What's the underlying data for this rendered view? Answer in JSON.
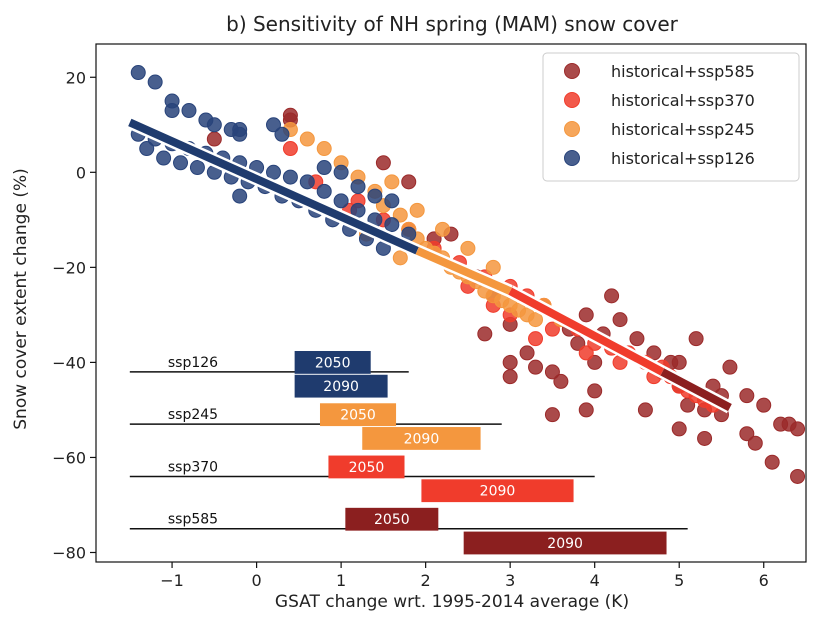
{
  "chart_data": {
    "type": "scatter",
    "title": "b) Sensitivity of NH spring (MAM) snow cover",
    "xlabel": "GSAT change wrt. 1995-2014 average (K)",
    "ylabel": "Snow cover extent change (%)",
    "xlim": [
      -1.9,
      6.5
    ],
    "ylim": [
      -82,
      27
    ],
    "xticks": [
      -1,
      0,
      1,
      2,
      3,
      4,
      5,
      6
    ],
    "yticks": [
      20,
      0,
      -20,
      -40,
      -60,
      -80
    ],
    "legend_position": "top-right",
    "series": [
      {
        "name": "historical+ssp585",
        "color": "#9b2a2a",
        "points": [
          [
            -0.5,
            7
          ],
          [
            0.4,
            11
          ],
          [
            0.4,
            12
          ],
          [
            1.5,
            2
          ],
          [
            1.8,
            -2
          ],
          [
            2.1,
            -14
          ],
          [
            2.3,
            -13
          ],
          [
            2.6,
            -22
          ],
          [
            2.8,
            -26
          ],
          [
            3.0,
            -32
          ],
          [
            3.0,
            -40
          ],
          [
            3.0,
            -43
          ],
          [
            3.2,
            -38
          ],
          [
            3.3,
            -41
          ],
          [
            3.5,
            -42
          ],
          [
            3.6,
            -44
          ],
          [
            3.8,
            -36
          ],
          [
            3.9,
            -30
          ],
          [
            4.0,
            -40
          ],
          [
            4.0,
            -46
          ],
          [
            4.2,
            -26
          ],
          [
            4.3,
            -31
          ],
          [
            4.5,
            -35
          ],
          [
            4.7,
            -38
          ],
          [
            4.9,
            -40
          ],
          [
            5.0,
            -45
          ],
          [
            5.2,
            -35
          ],
          [
            5.4,
            -45
          ],
          [
            5.6,
            -41
          ],
          [
            5.8,
            -47
          ],
          [
            5.9,
            -57
          ],
          [
            6.0,
            -49
          ],
          [
            6.1,
            -61
          ],
          [
            6.2,
            -53
          ],
          [
            6.3,
            -53
          ],
          [
            6.4,
            -64
          ],
          [
            6.4,
            -54
          ],
          [
            3.5,
            -51
          ],
          [
            3.9,
            -50
          ],
          [
            4.6,
            -50
          ],
          [
            5.0,
            -54
          ],
          [
            5.3,
            -56
          ],
          [
            5.5,
            -51
          ],
          [
            2.7,
            -34
          ],
          [
            3.7,
            -33
          ],
          [
            4.1,
            -34
          ],
          [
            4.8,
            -42
          ],
          [
            5.1,
            -49
          ],
          [
            5.3,
            -50
          ],
          [
            5.0,
            -40
          ],
          [
            5.5,
            -47
          ],
          [
            5.8,
            -55
          ]
        ]
      },
      {
        "name": "historical+ssp370",
        "color": "#f03c2c",
        "points": [
          [
            0.4,
            5
          ],
          [
            0.7,
            -2
          ],
          [
            1.2,
            -6
          ],
          [
            1.5,
            -10
          ],
          [
            1.8,
            -12
          ],
          [
            2.1,
            -16
          ],
          [
            2.4,
            -19
          ],
          [
            2.7,
            -22
          ],
          [
            3.0,
            -24
          ],
          [
            3.2,
            -26
          ],
          [
            3.4,
            -28
          ],
          [
            3.6,
            -31
          ],
          [
            3.8,
            -33
          ],
          [
            4.0,
            -36
          ],
          [
            4.2,
            -37
          ],
          [
            4.4,
            -38
          ],
          [
            4.6,
            -40
          ],
          [
            4.8,
            -41
          ],
          [
            4.9,
            -43
          ],
          [
            5.0,
            -45
          ],
          [
            5.1,
            -46
          ],
          [
            5.2,
            -47
          ],
          [
            5.3,
            -48
          ],
          [
            5.4,
            -49
          ],
          [
            3.0,
            -30
          ],
          [
            3.5,
            -33
          ],
          [
            4.3,
            -40
          ],
          [
            4.7,
            -43
          ],
          [
            2.5,
            -24
          ],
          [
            1.1,
            -8
          ],
          [
            2.8,
            -28
          ],
          [
            3.3,
            -35
          ],
          [
            3.9,
            -38
          ]
        ]
      },
      {
        "name": "historical+ssp245",
        "color": "#f4973e",
        "points": [
          [
            0.4,
            9
          ],
          [
            0.6,
            7
          ],
          [
            0.8,
            5
          ],
          [
            1.0,
            2
          ],
          [
            1.2,
            -1
          ],
          [
            1.4,
            -4
          ],
          [
            1.5,
            -7
          ],
          [
            1.7,
            -9
          ],
          [
            1.8,
            -12
          ],
          [
            1.9,
            -14
          ],
          [
            2.0,
            -16
          ],
          [
            2.1,
            -17
          ],
          [
            2.2,
            -18
          ],
          [
            2.3,
            -20
          ],
          [
            2.4,
            -21
          ],
          [
            2.5,
            -22
          ],
          [
            2.6,
            -23
          ],
          [
            2.7,
            -25
          ],
          [
            2.8,
            -26
          ],
          [
            2.9,
            -27
          ],
          [
            3.0,
            -28
          ],
          [
            3.1,
            -29
          ],
          [
            3.2,
            -30
          ],
          [
            3.3,
            -31
          ],
          [
            1.6,
            -2
          ],
          [
            1.9,
            -8
          ],
          [
            2.2,
            -12
          ],
          [
            2.5,
            -16
          ],
          [
            2.8,
            -20
          ],
          [
            3.4,
            -28
          ],
          [
            3.6,
            -31
          ],
          [
            1.3,
            -13
          ],
          [
            1.7,
            -18
          ]
        ]
      },
      {
        "name": "historical+ssp126",
        "color": "#28437a",
        "points": [
          [
            -1.4,
            21
          ],
          [
            -1.2,
            19
          ],
          [
            -1.0,
            15
          ],
          [
            -1.0,
            13
          ],
          [
            -0.8,
            13
          ],
          [
            -0.6,
            11
          ],
          [
            -0.5,
            10
          ],
          [
            -0.3,
            9
          ],
          [
            -0.2,
            8
          ],
          [
            -0.2,
            9
          ],
          [
            0.2,
            10
          ],
          [
            0.3,
            8
          ],
          [
            -1.4,
            8
          ],
          [
            -1.2,
            7
          ],
          [
            -1.0,
            6
          ],
          [
            -0.8,
            5
          ],
          [
            -0.6,
            4
          ],
          [
            -0.4,
            3
          ],
          [
            -0.2,
            2
          ],
          [
            0.0,
            1
          ],
          [
            0.2,
            0
          ],
          [
            0.4,
            -1
          ],
          [
            0.6,
            -2
          ],
          [
            0.8,
            -4
          ],
          [
            1.0,
            -6
          ],
          [
            1.2,
            -8
          ],
          [
            1.4,
            -10
          ],
          [
            1.6,
            -11
          ],
          [
            1.8,
            -13
          ],
          [
            -1.3,
            5
          ],
          [
            -1.1,
            3
          ],
          [
            -0.9,
            2
          ],
          [
            -0.7,
            1
          ],
          [
            -0.5,
            0
          ],
          [
            -0.3,
            -1
          ],
          [
            -0.1,
            -2
          ],
          [
            0.1,
            -3
          ],
          [
            0.3,
            -5
          ],
          [
            0.5,
            -6
          ],
          [
            0.7,
            -8
          ],
          [
            0.9,
            -10
          ],
          [
            1.1,
            -12
          ],
          [
            1.3,
            -14
          ],
          [
            1.5,
            -16
          ],
          [
            0.8,
            1
          ],
          [
            1.0,
            0
          ],
          [
            1.2,
            -3
          ],
          [
            1.4,
            -5
          ],
          [
            1.6,
            -6
          ],
          [
            -0.2,
            -5
          ]
        ]
      }
    ],
    "fit_lines": [
      {
        "series": "historical+ssp126",
        "color": "#1f3b6e",
        "x": [
          -1.5,
          1.9
        ],
        "y": [
          10.5,
          -16.5
        ]
      },
      {
        "series": "historical+ssp245",
        "color": "#f4973e",
        "x": [
          1.9,
          3.0
        ],
        "y": [
          -16.5,
          -25.0
        ]
      },
      {
        "series": "historical+ssp370",
        "color": "#f03c2c",
        "x": [
          3.0,
          4.8
        ],
        "y": [
          -25.0,
          -42.0
        ]
      },
      {
        "series": "historical+ssp585",
        "color": "#8b1f1f",
        "x": [
          4.8,
          5.6
        ],
        "y": [
          -42.0,
          -49.5
        ]
      }
    ],
    "scenario_ranges": [
      {
        "name": "ssp126",
        "color": "#1f3b6e",
        "line": [
          -1.5,
          1.8
        ],
        "line_y": -42,
        "bars": [
          {
            "label": "2050",
            "x0": 0.45,
            "x1": 1.35,
            "yc": -40
          },
          {
            "label": "2090",
            "x0": 0.45,
            "x1": 1.55,
            "yc": -45
          }
        ]
      },
      {
        "name": "ssp245",
        "color": "#f4973e",
        "line": [
          -1.5,
          2.9
        ],
        "line_y": -53,
        "bars": [
          {
            "label": "2050",
            "x0": 0.75,
            "x1": 1.65,
            "yc": -51
          },
          {
            "label": "2090",
            "x0": 1.25,
            "x1": 2.65,
            "yc": -56
          }
        ]
      },
      {
        "name": "ssp370",
        "color": "#f03c2c",
        "line": [
          -1.5,
          4.0
        ],
        "line_y": -64,
        "bars": [
          {
            "label": "2050",
            "x0": 0.85,
            "x1": 1.75,
            "yc": -62
          },
          {
            "label": "2090",
            "x0": 1.95,
            "x1": 3.75,
            "yc": -67
          }
        ]
      },
      {
        "name": "ssp585",
        "color": "#8b1f1f",
        "line": [
          -1.5,
          5.1
        ],
        "line_y": -75,
        "bars": [
          {
            "label": "2050",
            "x0": 1.05,
            "x1": 2.15,
            "yc": -73
          },
          {
            "label": "2090",
            "x0": 2.45,
            "x1": 4.85,
            "yc": -78
          }
        ]
      }
    ]
  }
}
